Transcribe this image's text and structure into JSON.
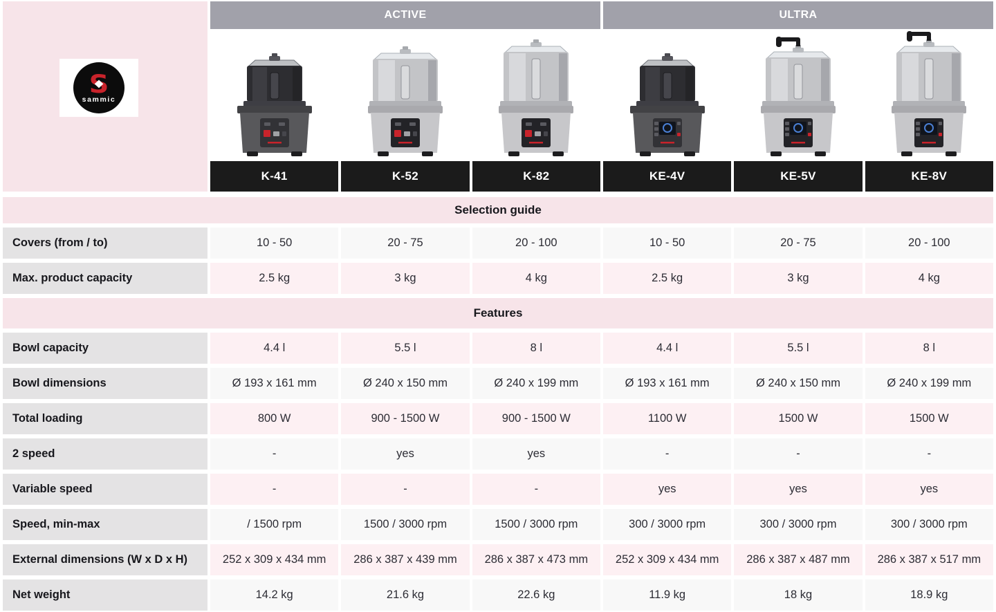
{
  "brand": {
    "logo_text": "sammic"
  },
  "header": {
    "groups": [
      {
        "label": "ACTIVE"
      },
      {
        "label": "ULTRA"
      }
    ],
    "products": [
      {
        "model": "K-41",
        "finish": "dark",
        "crank": false,
        "bowl_h": 60
      },
      {
        "model": "K-52",
        "finish": "steel",
        "crank": false,
        "bowl_h": 70
      },
      {
        "model": "K-82",
        "finish": "steel",
        "crank": false,
        "bowl_h": 80
      },
      {
        "model": "KE-4V",
        "finish": "dark",
        "crank": false,
        "bowl_h": 60
      },
      {
        "model": "KE-5V",
        "finish": "steel",
        "crank": true,
        "bowl_h": 72
      },
      {
        "model": "KE-8V",
        "finish": "steel",
        "crank": true,
        "bowl_h": 80
      }
    ]
  },
  "sections": [
    {
      "title": "Selection guide",
      "rows": [
        {
          "label": "Covers (from / to)",
          "values": [
            "10 - 50",
            "20 - 75",
            "20 - 100",
            "10 - 50",
            "20 - 75",
            "20 - 100"
          ]
        },
        {
          "label": "Max. product capacity",
          "values": [
            "2.5 kg",
            "3 kg",
            "4 kg",
            "2.5 kg",
            "3 kg",
            "4 kg"
          ]
        }
      ]
    },
    {
      "title": "Features",
      "rows": [
        {
          "label": "Bowl capacity",
          "values": [
            "4.4 l",
            "5.5 l",
            "8 l",
            "4.4 l",
            "5.5 l",
            "8 l"
          ]
        },
        {
          "label": "Bowl dimensions",
          "values": [
            "Ø 193 x 161 mm",
            "Ø 240 x 150 mm",
            "Ø 240 x 199 mm",
            "Ø 193 x 161 mm",
            "Ø 240 x 150 mm",
            "Ø 240 x 199 mm"
          ]
        },
        {
          "label": "Total loading",
          "values": [
            "800 W",
            "900 - 1500 W",
            "900 - 1500 W",
            "1100 W",
            "1500 W",
            "1500 W"
          ]
        },
        {
          "label": "2 speed",
          "values": [
            "-",
            "yes",
            "yes",
            "-",
            "-",
            "-"
          ]
        },
        {
          "label": "Variable speed",
          "values": [
            "-",
            "-",
            "-",
            "yes",
            "yes",
            "yes"
          ]
        },
        {
          "label": "Speed, min-max",
          "values": [
            "/ 1500 rpm",
            "1500 / 3000 rpm",
            "1500 / 3000 rpm",
            "300 / 3000 rpm",
            "300 / 3000 rpm",
            "300 / 3000 rpm"
          ]
        },
        {
          "label": "External dimensions (W x D x H)",
          "values": [
            "252 x 309 x 434 mm",
            "286 x 387 x 439 mm",
            "286 x 387 x 473 mm",
            "252 x 309 x 434 mm",
            "286 x 387 x 487 mm",
            "286 x 387 x 517 mm"
          ]
        },
        {
          "label": "Net weight",
          "values": [
            "14.2 kg",
            "21.6 kg",
            "22.6 kg",
            "11.9 kg",
            "18 kg",
            "18.9 kg"
          ]
        }
      ]
    }
  ],
  "colors": {
    "accent_red": "#c8232b",
    "group_header_bg": "#a1a1aa",
    "model_bar_bg": "#1b1b1b",
    "panel_pink": "#f7e4e9",
    "row_pink": "#fdf0f3",
    "row_gray": "#f8f8f8",
    "label_bg": "#e4e3e4"
  }
}
